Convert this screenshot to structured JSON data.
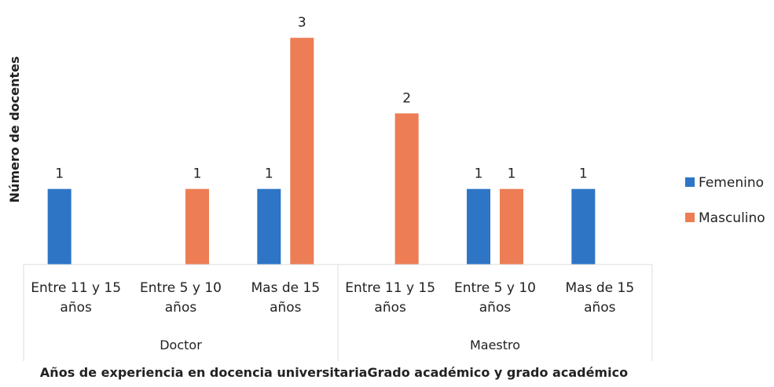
{
  "chart_data": {
    "type": "bar",
    "x_label": "Años de experiencia en docencia universitariaGrado académico y grado académico",
    "y_label": "Número de docentes",
    "groups": [
      {
        "name": "Doctor",
        "categories": [
          "Entre 11 y 15 años",
          "Entre 5 y 10 años",
          "Mas de 15 años"
        ]
      },
      {
        "name": "Maestro",
        "categories": [
          "Entre 11 y 15 años",
          "Entre 5 y 10 años",
          "Mas de 15 años"
        ]
      }
    ],
    "series": [
      {
        "name": "Femenino",
        "color": "#2e75c6",
        "values": [
          1,
          null,
          1,
          null,
          1,
          1
        ]
      },
      {
        "name": "Masculino",
        "color": "#ed7d55",
        "values": [
          null,
          1,
          3,
          2,
          1,
          null
        ]
      }
    ],
    "ylim": [
      0,
      3.5
    ],
    "legend": "right"
  }
}
